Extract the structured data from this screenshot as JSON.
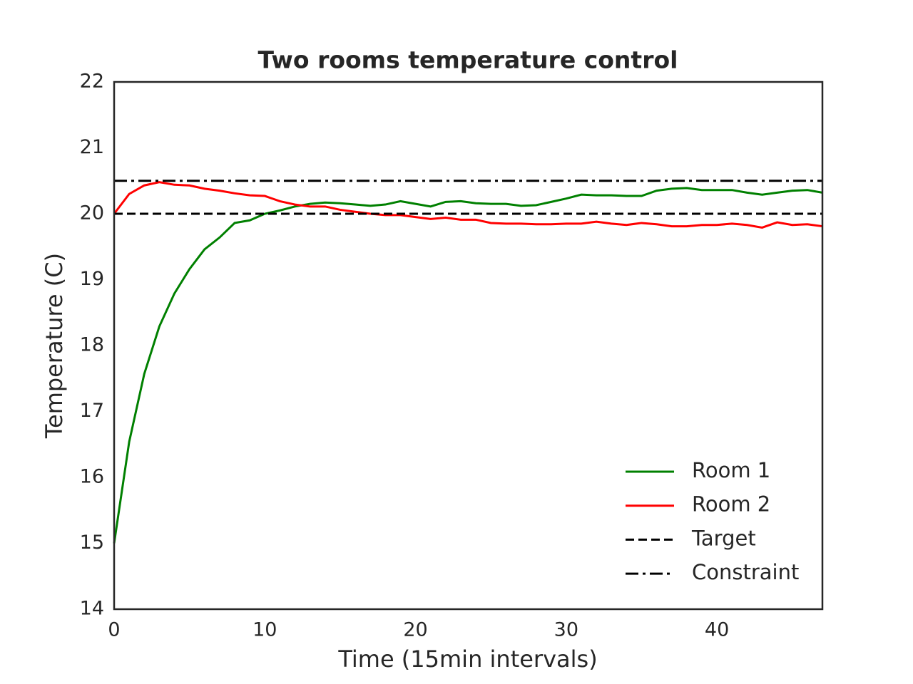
{
  "chart_data": {
    "type": "line",
    "title": "Two rooms temperature control",
    "x_label": "Time (15min intervals)",
    "y_label": "Temperature (C)",
    "x": [
      0,
      1,
      2,
      3,
      4,
      5,
      6,
      7,
      8,
      9,
      10,
      11,
      12,
      13,
      14,
      15,
      16,
      17,
      18,
      19,
      20,
      21,
      22,
      23,
      24,
      25,
      26,
      27,
      28,
      29,
      30,
      31,
      32,
      33,
      34,
      35,
      36,
      37,
      38,
      39,
      40,
      41,
      42,
      43,
      44,
      45,
      46,
      47
    ],
    "series": [
      {
        "name": "Room 1",
        "color": "#008000",
        "values": [
          15.0,
          16.54,
          17.57,
          18.29,
          18.79,
          19.16,
          19.46,
          19.64,
          19.86,
          19.9,
          20.0,
          20.05,
          20.11,
          20.15,
          20.17,
          20.16,
          20.14,
          20.12,
          20.14,
          20.19,
          20.15,
          20.11,
          20.18,
          20.19,
          20.16,
          20.15,
          20.15,
          20.12,
          20.13,
          20.18,
          20.23,
          20.29,
          20.28,
          20.28,
          20.27,
          20.27,
          20.35,
          20.38,
          20.39,
          20.36,
          20.36,
          20.36,
          20.32,
          20.29,
          20.32,
          20.35,
          20.36,
          20.32
        ]
      },
      {
        "name": "Room 2",
        "color": "#ff0000",
        "values": [
          20.0,
          20.3,
          20.43,
          20.48,
          20.44,
          20.43,
          20.38,
          20.35,
          20.31,
          20.28,
          20.27,
          20.19,
          20.14,
          20.11,
          20.11,
          20.06,
          20.03,
          20.0,
          19.98,
          19.98,
          19.95,
          19.92,
          19.94,
          19.91,
          19.91,
          19.86,
          19.85,
          19.85,
          19.84,
          19.84,
          19.85,
          19.85,
          19.88,
          19.85,
          19.83,
          19.86,
          19.84,
          19.81,
          19.81,
          19.83,
          19.83,
          19.85,
          19.83,
          19.79,
          19.87,
          19.83,
          19.84,
          19.81
        ]
      }
    ],
    "reference_lines": [
      {
        "name": "Target",
        "value": 20,
        "color": "#000000",
        "style": "dashed"
      },
      {
        "name": "Constraint",
        "value": 20.5,
        "color": "#000000",
        "style": "dashdot"
      }
    ],
    "xlim": [
      0,
      47
    ],
    "xticks": [
      0,
      10,
      20,
      30,
      40
    ],
    "ylim": [
      14,
      22
    ],
    "yticks": [
      14,
      15,
      16,
      17,
      18,
      19,
      20,
      21,
      22
    ],
    "grid": false,
    "legend": "lower right"
  }
}
